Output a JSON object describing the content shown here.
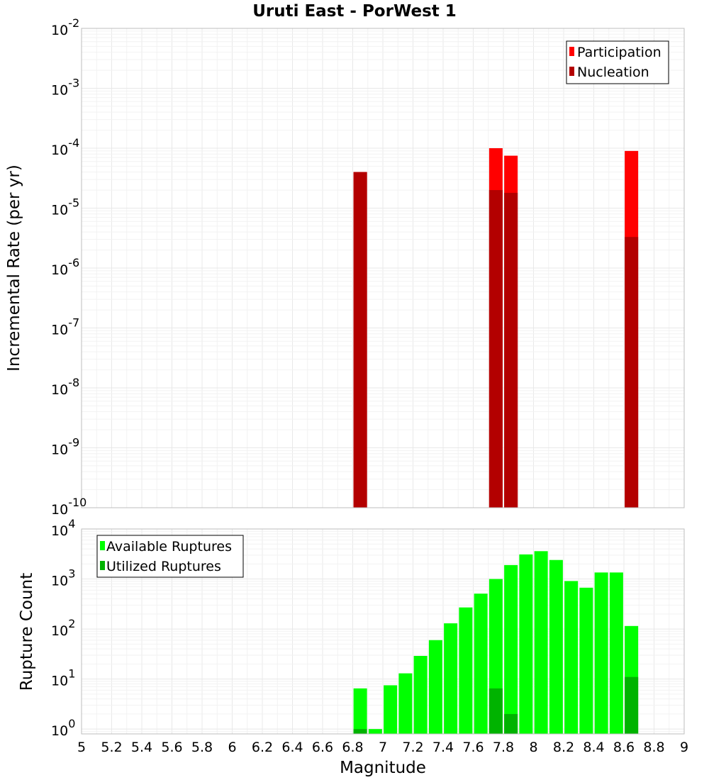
{
  "chart_data": [
    {
      "type": "bar",
      "title": "Uruti East - PorWest 1",
      "ylabel": "Incremental Rate (per yr)",
      "yscale": "log",
      "ylim": [
        1e-10,
        0.01
      ],
      "ytick_exponents": [
        -10,
        -9,
        -8,
        -7,
        -6,
        -5,
        -4,
        -3,
        -2
      ],
      "legend_position": "top-right",
      "series": [
        {
          "name": "Participation",
          "color": "#ff0000",
          "x": [
            6.85,
            7.75,
            7.85,
            8.65
          ],
          "values": [
            4e-05,
            0.0001,
            7.5e-05,
            9e-05
          ]
        },
        {
          "name": "Nucleation",
          "color": "#b30000",
          "x": [
            6.85,
            7.75,
            7.85,
            8.65
          ],
          "values": [
            4e-05,
            2e-05,
            1.8e-05,
            3.3e-06
          ]
        }
      ]
    },
    {
      "type": "bar",
      "ylabel": "Rupture Count",
      "xlabel": "Magnitude",
      "yscale": "log",
      "ylim": [
        0.8,
        10000
      ],
      "ytick_exponents": [
        0,
        1,
        2,
        3,
        4
      ],
      "xlim": [
        5,
        9
      ],
      "xticks": [
        "5",
        "5.2",
        "5.4",
        "5.6",
        "5.8",
        "6",
        "6.2",
        "6.4",
        "6.6",
        "6.8",
        "7",
        "7.2",
        "7.4",
        "7.6",
        "7.8",
        "8",
        "8.2",
        "8.4",
        "8.6",
        "8.8",
        "9"
      ],
      "legend_position": "top-left",
      "series": [
        {
          "name": "Available Ruptures",
          "color": "#00ff00",
          "x": [
            6.85,
            6.95,
            7.05,
            7.15,
            7.25,
            7.35,
            7.45,
            7.55,
            7.65,
            7.75,
            7.85,
            7.95,
            8.05,
            8.15,
            8.25,
            8.35,
            8.45,
            8.55,
            8.65
          ],
          "values": [
            6.5,
            1,
            7.5,
            13,
            29,
            60,
            130,
            270,
            510,
            1000,
            1900,
            3100,
            3600,
            2400,
            910,
            670,
            1350,
            1350,
            115
          ]
        },
        {
          "name": "Utilized Ruptures",
          "color": "#00b300",
          "x": [
            6.85,
            7.75,
            7.85,
            8.65
          ],
          "values": [
            1,
            6.5,
            2,
            11
          ]
        }
      ]
    }
  ]
}
